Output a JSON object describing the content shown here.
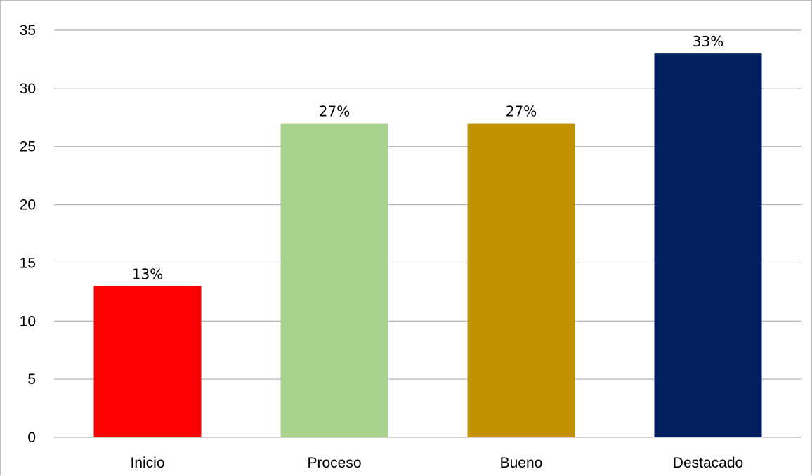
{
  "chart_data": {
    "type": "bar",
    "categories": [
      "Inicio",
      "Proceso",
      "Bueno",
      "Destacado"
    ],
    "values": [
      13,
      27,
      27,
      33
    ],
    "data_labels": [
      "13%",
      "27%",
      "27%",
      "33%"
    ],
    "colors": [
      "#ff0000",
      "#a9d18e",
      "#bf9000",
      "#002060"
    ],
    "title": "",
    "xlabel": "",
    "ylabel": "",
    "ylim": [
      0,
      35
    ],
    "yticks": [
      0,
      5,
      10,
      15,
      20,
      25,
      30,
      35
    ],
    "grid": true,
    "gridline_color": "#a6a6a6",
    "legend": "none"
  }
}
